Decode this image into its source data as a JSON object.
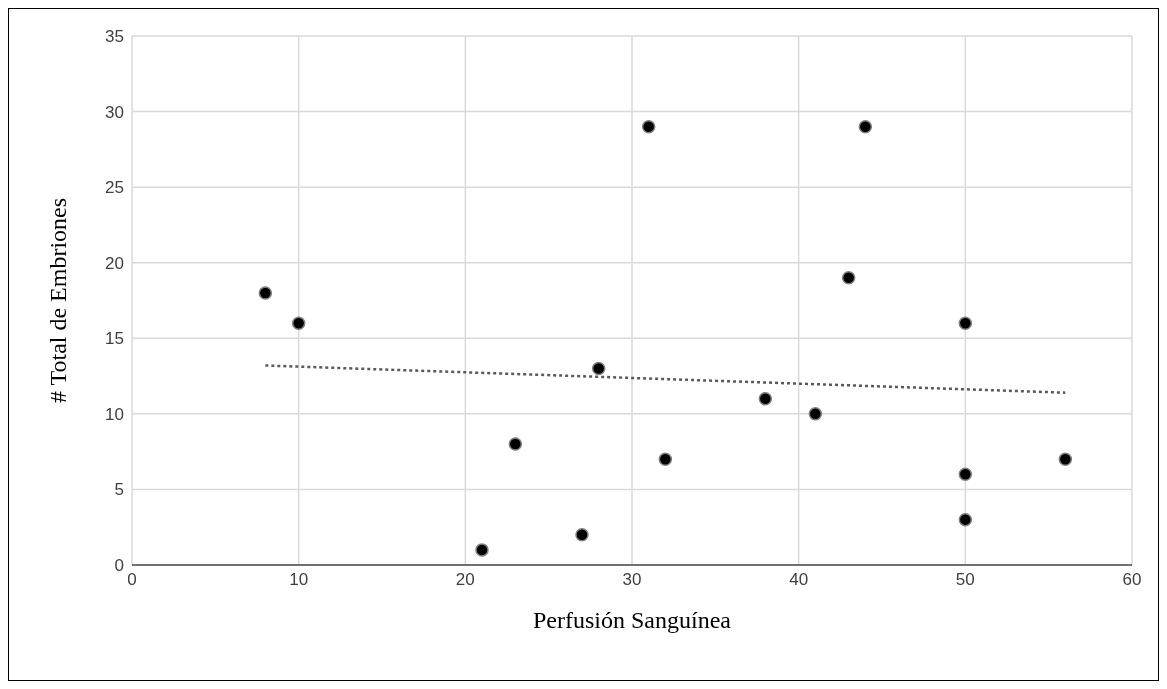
{
  "chart_data": {
    "type": "scatter",
    "xlabel": "Perfusión Sanguínea",
    "ylabel": "# Total de Embriones",
    "xlim": [
      0,
      60
    ],
    "xticks": [
      0,
      10,
      20,
      30,
      40,
      50,
      60
    ],
    "ylim": [
      0,
      35
    ],
    "yticks": [
      0,
      5,
      10,
      15,
      20,
      25,
      30,
      35
    ],
    "grid": true,
    "marker": "circle",
    "series": [
      {
        "color": "#000000",
        "x": [
          8,
          10,
          21,
          23,
          27,
          28,
          31,
          32,
          38,
          41,
          43,
          44,
          50,
          50,
          50,
          56
        ],
        "values": [
          18,
          16,
          1,
          8,
          2,
          13,
          29,
          7,
          11,
          10,
          19,
          29,
          16,
          6,
          3,
          7
        ]
      },
      {
        "type": "line",
        "color": "#595959",
        "line_style": "dotted",
        "marker": "none",
        "x": [
          8,
          56
        ],
        "values": [
          13.2,
          11.4
        ]
      }
    ]
  }
}
